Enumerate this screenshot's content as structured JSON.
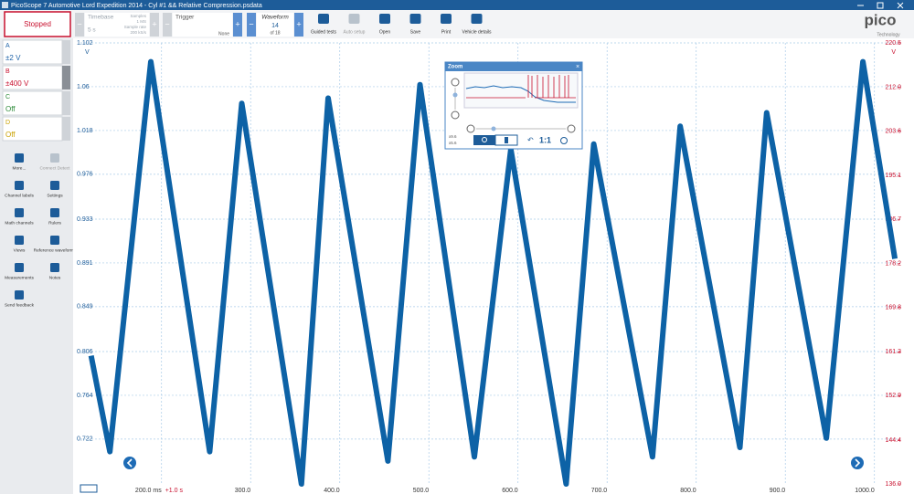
{
  "window": {
    "title": "PicoScope 7 Automotive Lord Expedition 2014 - Cyl #1 && Relative Compression.psdata"
  },
  "toolbar": {
    "status": "Stopped",
    "timebase_label": "Timebase",
    "timebase_value": "5 s",
    "samples_label": "Samples",
    "samples_value": "1 MS",
    "sample_rate_label": "Sample rate",
    "sample_rate_value": "200 kS/s",
    "trigger_label": "Trigger",
    "trigger_mode": "None",
    "waveform_label": "Waveform",
    "waveform_index": "14",
    "waveform_total": "of 18",
    "buttons": [
      "Guided tests",
      "Auto setup",
      "Open",
      "Save",
      "Print",
      "Vehicle details"
    ]
  },
  "brand": {
    "logo": "pico",
    "sub": "Technology"
  },
  "channels": [
    {
      "name": "A",
      "range": "±2 V",
      "color": "#1f63a8"
    },
    {
      "name": "B",
      "range": "±400 V",
      "color": "#c8102e"
    },
    {
      "name": "C",
      "range": "Off",
      "color": "#2e8b3a"
    },
    {
      "name": "D",
      "range": "Off",
      "color": "#c9a000"
    }
  ],
  "side_tools": [
    "More...",
    "Connect Detect",
    "Channel labels",
    "Settings",
    "Math channels",
    "Rulers",
    "Views",
    "Reference waveforms",
    "Measurements",
    "Notes",
    "Send feedback"
  ],
  "zoom": {
    "title": "Zoom",
    "ratio": "1:1",
    "x_factor": "x9.6",
    "y_factor": "x5.6"
  },
  "chart_data": {
    "type": "line",
    "color": "#0d62a6",
    "y_unit": "V",
    "y2_unit": "V",
    "annotation": "+1.0 s",
    "x": [
      121,
      142,
      188,
      254,
      290,
      357,
      387,
      454,
      490,
      551,
      592,
      654,
      685,
      751,
      782,
      849,
      879,
      946,
      987,
      1023
    ],
    "values": [
      0.802,
      0.71,
      1.084,
      0.71,
      1.044,
      0.679,
      1.049,
      0.701,
      1.062,
      0.705,
      1.0,
      0.679,
      1.005,
      0.705,
      1.022,
      0.714,
      1.035,
      0.723,
      1.084,
      0.895
    ],
    "xlim": [
      109,
      1029
    ],
    "ylim": [
      0.679,
      1.102
    ],
    "y2lim": [
      136.0,
      220.5
    ],
    "xticks": [
      {
        "value": 200,
        "label": "200.0 ms"
      },
      {
        "value": 300,
        "label": "300.0"
      },
      {
        "value": 400,
        "label": "400.0"
      },
      {
        "value": 500,
        "label": "500.0"
      },
      {
        "value": 600,
        "label": "600.0"
      },
      {
        "value": 700,
        "label": "700.0"
      },
      {
        "value": 800,
        "label": "800.0"
      },
      {
        "value": 900,
        "label": "900.0"
      },
      {
        "value": 1000,
        "label": "1000.0"
      }
    ],
    "yticks": [
      0.722,
      0.764,
      0.806,
      0.849,
      0.891,
      0.933,
      0.976,
      1.018,
      1.06,
      1.102
    ],
    "y2ticks": [
      {
        "value": 136.0,
        "label": "136.0"
      },
      144.4,
      152.9,
      161.3,
      169.8,
      178.2,
      186.7,
      195.1,
      203.6,
      {
        "value": 212.0,
        "label": "212.0"
      },
      220.5
    ],
    "grid": true
  }
}
